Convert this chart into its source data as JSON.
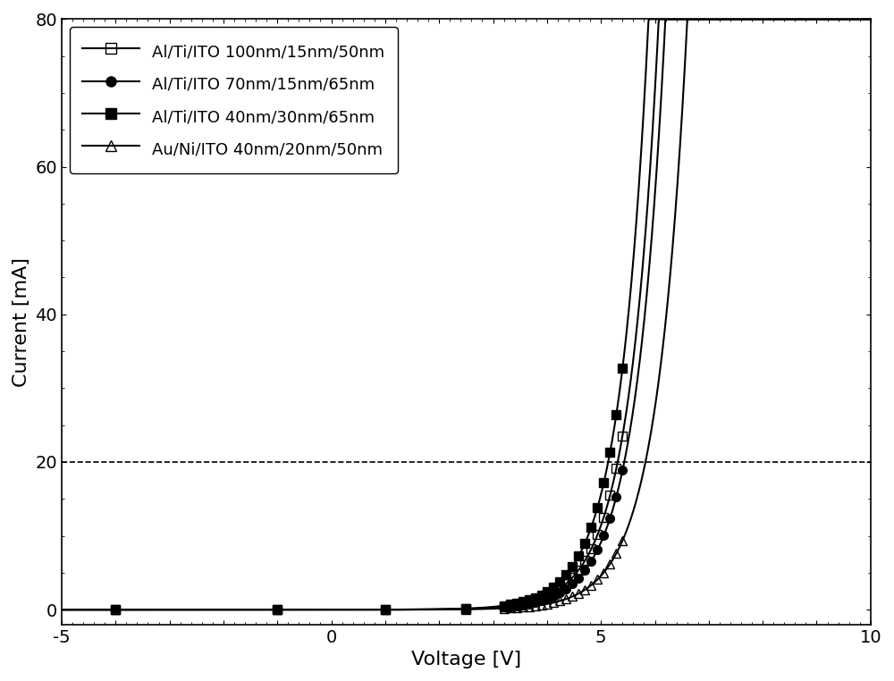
{
  "xlabel": "Voltage [V]",
  "ylabel": "Current [mA]",
  "xlim": [
    -5,
    10
  ],
  "ylim": [
    -2,
    80
  ],
  "dashed_line_y": 20,
  "series": [
    {
      "label": "Al/Ti/ITO 100nm/15nm/50nm",
      "marker": "s",
      "fillstyle": "none",
      "Vth": 3.0,
      "scale": 0.3,
      "n_factor": 0.55
    },
    {
      "label": "Al/Ti/ITO 70nm/15nm/65nm",
      "marker": "o",
      "fillstyle": "full",
      "Vth": 3.0,
      "scale": 0.24,
      "n_factor": 0.55
    },
    {
      "label": "Al/Ti/ITO 40nm/30nm/65nm",
      "marker": "s",
      "fillstyle": "full",
      "Vth": 2.95,
      "scale": 0.35,
      "n_factor": 0.54
    },
    {
      "label": "Au/Ni/ITO 40nm/20nm/50nm",
      "marker": "^",
      "fillstyle": "none",
      "Vth": 3.3,
      "scale": 0.22,
      "n_factor": 0.56
    }
  ],
  "legend_fontsize": 13,
  "axis_fontsize": 16,
  "tick_fontsize": 14,
  "linewidth": 1.5,
  "marker_size": 7,
  "line_color": "#000000",
  "background_color": "#ffffff",
  "sparse_marker_V": [
    -4.0,
    -1.0,
    1.0,
    2.5
  ],
  "dense_marker_V_start": 3.2,
  "dense_marker_V_end": 5.4,
  "dense_marker_count": 20,
  "dashed_line_color": "#000000",
  "dashed_linewidth": 1.2
}
